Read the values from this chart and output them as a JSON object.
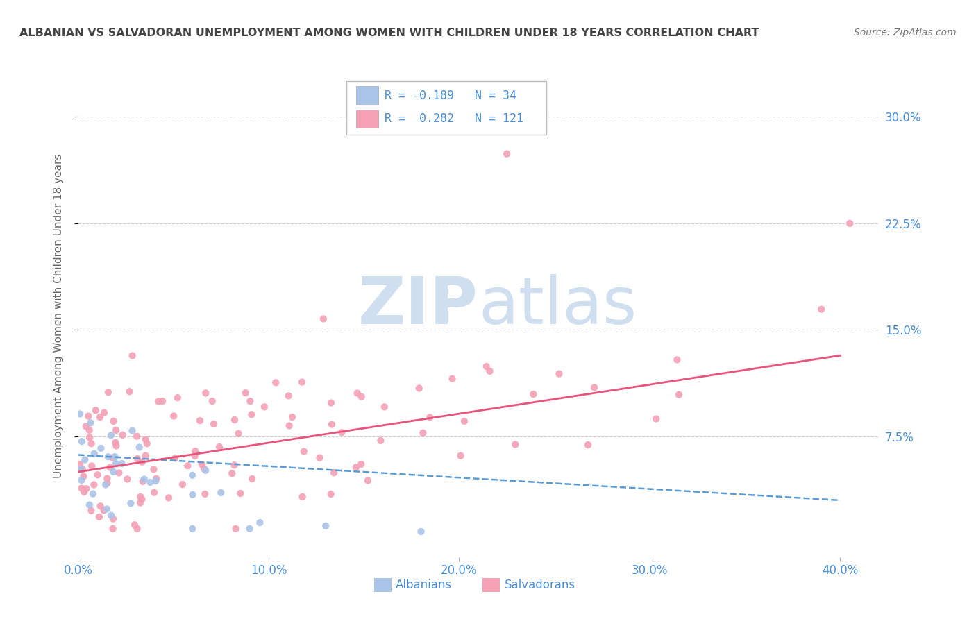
{
  "title": "ALBANIAN VS SALVADORAN UNEMPLOYMENT AMONG WOMEN WITH CHILDREN UNDER 18 YEARS CORRELATION CHART",
  "source": "Source: ZipAtlas.com",
  "ylabel": "Unemployment Among Women with Children Under 18 years",
  "xlabel_labels": [
    "0.0%",
    "10.0%",
    "20.0%",
    "30.0%",
    "40.0%"
  ],
  "xlim": [
    0.0,
    0.42
  ],
  "ylim": [
    -0.01,
    0.33
  ],
  "yticks": [
    0.075,
    0.15,
    0.225,
    0.3
  ],
  "ytick_labels": [
    "7.5%",
    "15.0%",
    "22.5%",
    "30.0%"
  ],
  "xticks": [
    0.0,
    0.1,
    0.2,
    0.3,
    0.4
  ],
  "r_albanian": -0.189,
  "n_albanian": 34,
  "r_salvadoran": 0.282,
  "n_salvadoran": 121,
  "albanian_color": "#aac4e8",
  "salvadoran_color": "#f4a0b5",
  "albanian_line_color": "#5b9bd5",
  "salvadoran_line_color": "#e8547a",
  "background_color": "#ffffff",
  "grid_color": "#cccccc",
  "title_color": "#444444",
  "axis_tick_color": "#4a90d9",
  "ylabel_color": "#666666",
  "legend_text_color": "#4a90d9",
  "watermark_color": "#d0dff0",
  "alb_trend_x0": 0.0,
  "alb_trend_x1": 0.4,
  "alb_trend_y0": 0.062,
  "alb_trend_y1": 0.03,
  "sal_trend_x0": 0.0,
  "sal_trend_x1": 0.4,
  "sal_trend_y0": 0.05,
  "sal_trend_y1": 0.132
}
